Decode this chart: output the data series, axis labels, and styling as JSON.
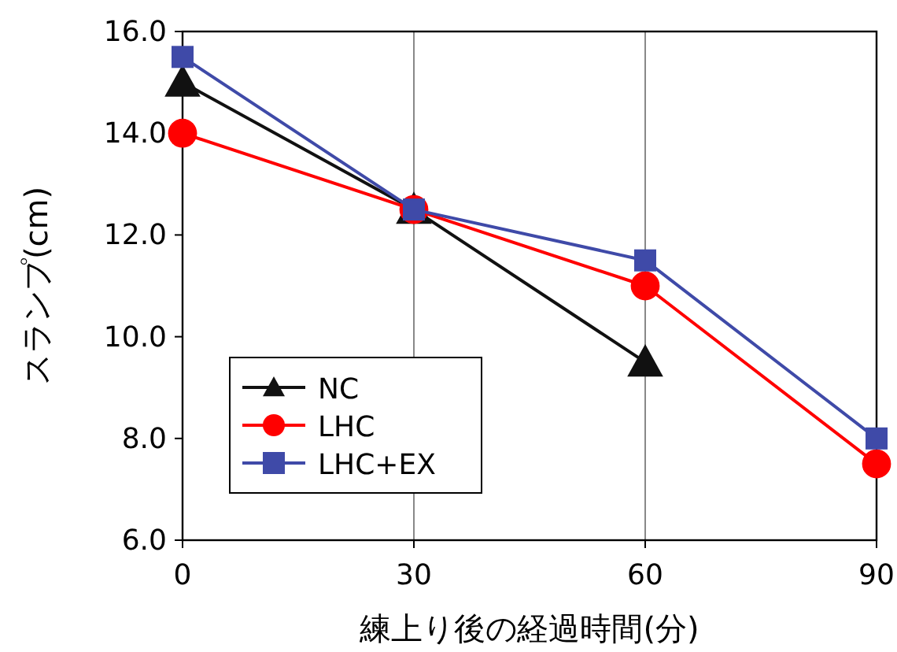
{
  "chart_data": {
    "type": "line",
    "xlabel": "練上り後の経過時間(分)",
    "ylabel": "スランプ(cm)",
    "x": [
      0,
      30,
      60,
      90
    ],
    "series": [
      {
        "name": "NC",
        "color": "#111111",
        "marker": "triangle",
        "values": [
          15.0,
          12.5,
          9.5,
          null
        ]
      },
      {
        "name": "LHC",
        "color": "#ff0000",
        "marker": "circle",
        "values": [
          14.0,
          12.5,
          11.0,
          7.5
        ]
      },
      {
        "name": "LHC+EX",
        "color": "#3f4aa8",
        "marker": "square",
        "values": [
          15.5,
          12.5,
          11.5,
          8.0
        ]
      }
    ],
    "xlim": [
      0,
      90
    ],
    "xticks": [
      0,
      30,
      60,
      90
    ],
    "ylim": [
      6,
      16
    ],
    "yticks": [
      {
        "value": 6,
        "label": "6.0"
      },
      {
        "value": 8,
        "label": "8.0"
      },
      {
        "value": 10,
        "label": "10.0"
      },
      {
        "value": 12,
        "label": "12.0"
      },
      {
        "value": 14,
        "label": "14.0"
      },
      {
        "value": 16,
        "label": "16.0"
      }
    ],
    "grid": "x",
    "legend": "bottom left"
  }
}
